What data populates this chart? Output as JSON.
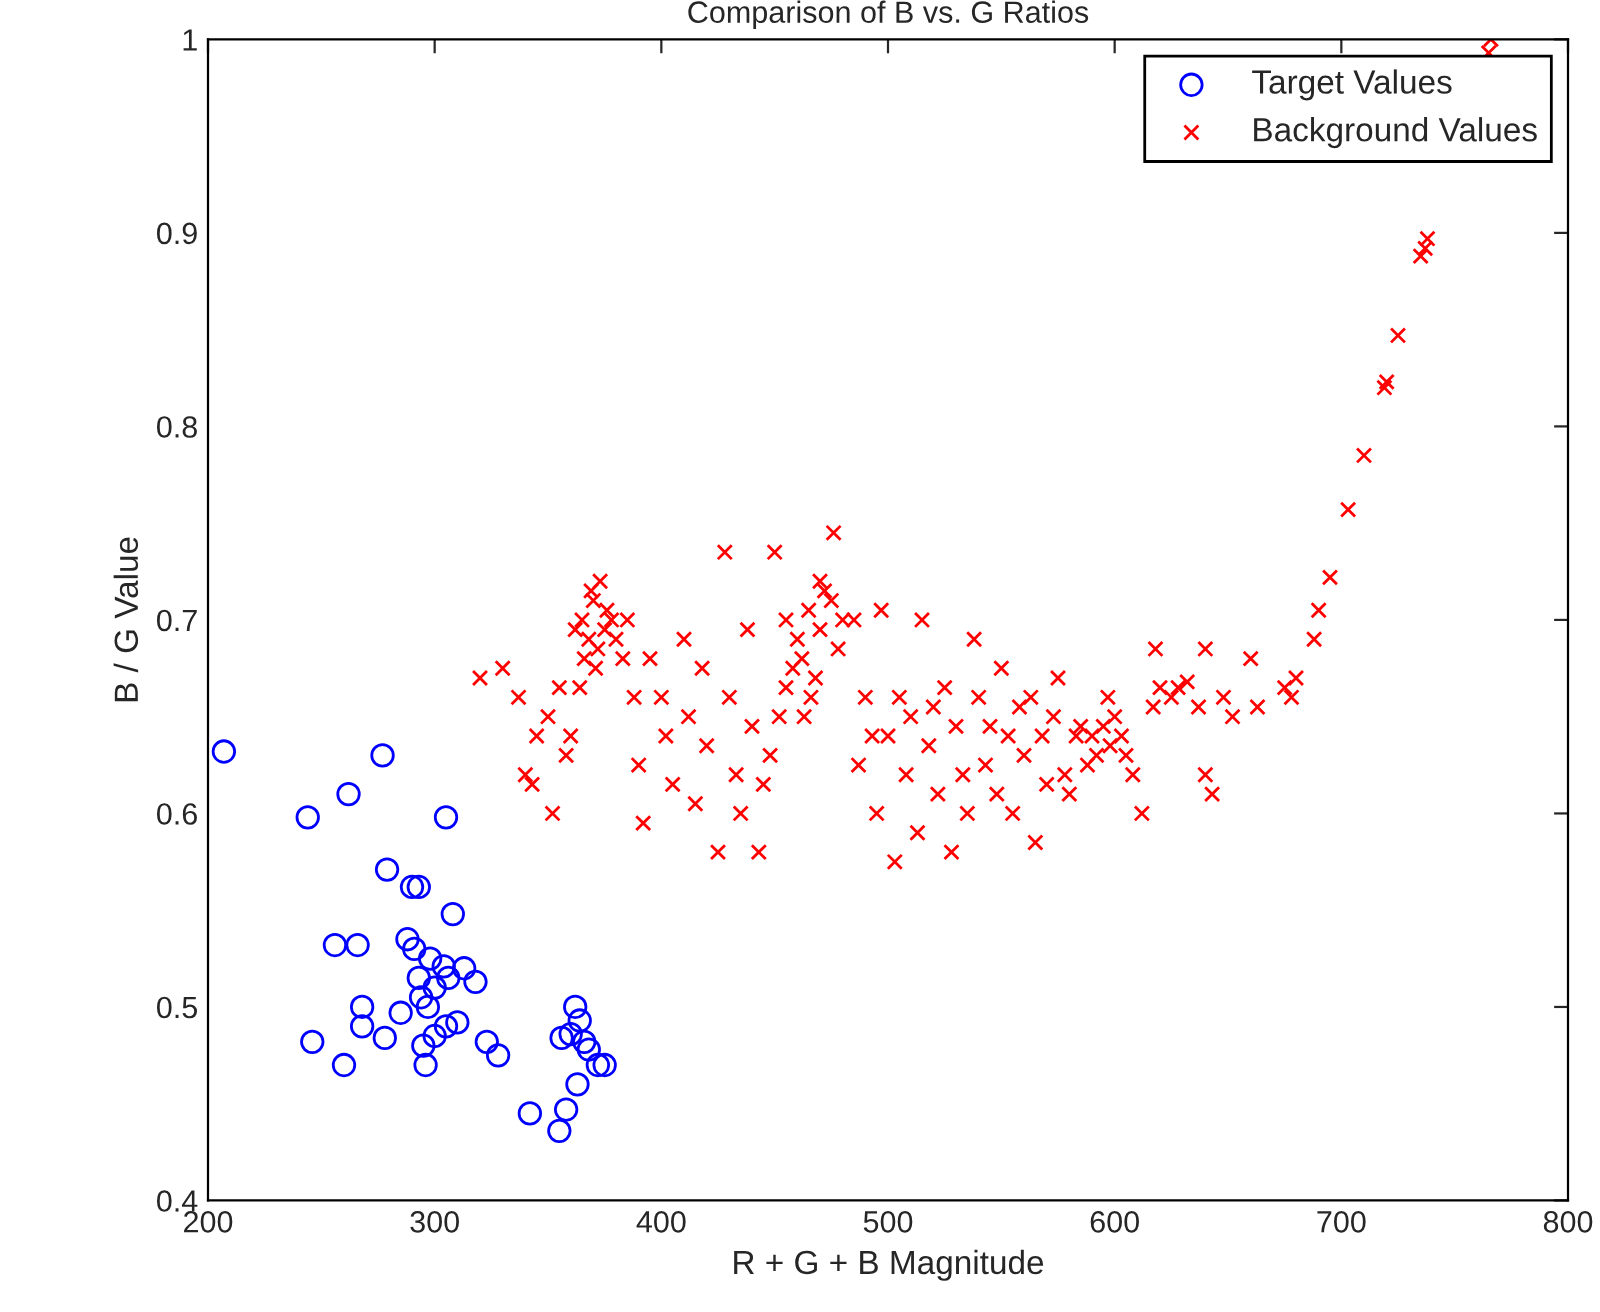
{
  "chart_data": {
    "type": "scatter",
    "title": "Comparison of B vs. G Ratios",
    "xlabel": "R + G + B Magnitude",
    "ylabel": "B / G Value",
    "xlim": [
      200,
      800
    ],
    "ylim": [
      0.4,
      1
    ],
    "xticks": [
      200,
      300,
      400,
      500,
      600,
      700,
      800
    ],
    "yticks": [
      0.4,
      0.5,
      0.6,
      0.7,
      0.8,
      0.9,
      1
    ],
    "grid": false,
    "legend": "top right",
    "series": [
      {
        "name": "Target Values",
        "color": "#0000ff",
        "marker": "circle",
        "x": [
          207,
          244,
          262,
          277,
          305,
          246,
          260,
          256,
          266,
          268,
          268,
          278,
          279,
          285,
          288,
          290,
          293,
          291,
          293,
          295,
          296,
          298,
          300,
          302,
          304,
          306,
          305,
          300,
          308,
          310,
          313,
          318,
          323,
          328,
          342,
          355,
          356,
          358,
          360,
          362,
          364,
          363,
          366,
          368,
          372,
          375,
          294,
          297
        ],
        "values": [
          0.632,
          0.598,
          0.61,
          0.63,
          0.598,
          0.482,
          0.47,
          0.532,
          0.532,
          0.5,
          0.49,
          0.484,
          0.571,
          0.497,
          0.535,
          0.562,
          0.562,
          0.53,
          0.515,
          0.48,
          0.47,
          0.525,
          0.51,
          null,
          0.521,
          0.515,
          0.49,
          0.485,
          0.548,
          0.492,
          0.52,
          0.513,
          0.482,
          0.475,
          0.445,
          0.436,
          0.484,
          0.447,
          0.486,
          0.5,
          0.493,
          0.46,
          0.482,
          0.478,
          0.47,
          0.47,
          0.505,
          0.5
        ]
      },
      {
        "name": "Background Values",
        "color": "#ff0000",
        "marker": "cross",
        "x": [
          365,
          368,
          370,
          372,
          375,
          378,
          366,
          373,
          380,
          362,
          371,
          376,
          369,
          383,
          364,
          455,
          460,
          465,
          470,
          475,
          462,
          468,
          472,
          458,
          478,
          480,
          466,
          455,
          463,
          470,
          476,
          485,
          590,
          595,
          598,
          600,
          592,
          603,
          588,
          597,
          585,
          605,
          320,
          330,
          337,
          340,
          343,
          345,
          350,
          352,
          355,
          358,
          360,
          385,
          388,
          390,
          392,
          395,
          400,
          402,
          405,
          410,
          412,
          415,
          418,
          420,
          425,
          428,
          430,
          433,
          435,
          438,
          440,
          443,
          445,
          448,
          450,
          452,
          487,
          490,
          493,
          495,
          497,
          500,
          503,
          505,
          508,
          510,
          513,
          515,
          518,
          520,
          522,
          525,
          528,
          530,
          533,
          535,
          538,
          540,
          543,
          545,
          548,
          550,
          553,
          555,
          558,
          560,
          563,
          565,
          568,
          570,
          573,
          575,
          578,
          580,
          583,
          608,
          612,
          617,
          620,
          625,
          628,
          632,
          637,
          640,
          643,
          648,
          652,
          660,
          663,
          675,
          678,
          640,
          618,
          680,
          688,
          690,
          695,
          703,
          710,
          719,
          720,
          725,
          735,
          737,
          738,
          765,
          766
        ],
        "values": [
          0.7,
          0.69,
          0.71,
          0.685,
          0.695,
          0.7,
          0.68,
          0.72,
          0.69,
          0.695,
          0.675,
          0.705,
          0.715,
          0.68,
          0.665,
          0.7,
          0.69,
          0.705,
          0.695,
          0.71,
          0.68,
          0.67,
          0.715,
          0.675,
          0.685,
          0.7,
          0.66,
          0.665,
          0.65,
          0.72,
          0.745,
          0.7,
          0.64,
          0.645,
          0.635,
          0.65,
          0.63,
          0.64,
          0.625,
          0.66,
          0.645,
          0.63,
          0.67,
          0.675,
          0.66,
          0.62,
          0.615,
          0.64,
          0.65,
          0.6,
          0.665,
          0.63,
          0.64,
          0.7,
          0.66,
          0.625,
          0.595,
          0.68,
          0.66,
          0.64,
          0.615,
          0.69,
          0.65,
          0.605,
          0.675,
          0.635,
          0.58,
          0.735,
          0.66,
          0.62,
          0.6,
          0.695,
          0.645,
          0.58,
          0.615,
          0.63,
          0.735,
          0.65,
          0.625,
          0.66,
          0.64,
          0.6,
          0.705,
          0.64,
          0.575,
          0.66,
          0.62,
          0.65,
          0.59,
          0.7,
          0.635,
          0.655,
          0.61,
          0.665,
          0.58,
          0.645,
          0.62,
          0.6,
          0.69,
          0.66,
          0.625,
          0.645,
          0.61,
          0.675,
          0.64,
          0.6,
          0.655,
          0.63,
          0.66,
          0.585,
          0.64,
          0.615,
          0.65,
          0.67,
          0.62,
          0.61,
          0.64,
          0.62,
          0.6,
          0.655,
          0.665,
          0.66,
          0.665,
          0.668,
          0.655,
          0.62,
          0.61,
          0.66,
          0.65,
          0.68,
          0.655,
          0.665,
          0.66,
          0.685,
          0.685,
          0.67,
          0.69,
          0.705,
          0.722,
          0.757,
          0.785,
          0.82,
          0.823,
          0.847,
          0.888,
          0.892,
          0.897,
          0.993,
          1.0
        ]
      }
    ]
  }
}
